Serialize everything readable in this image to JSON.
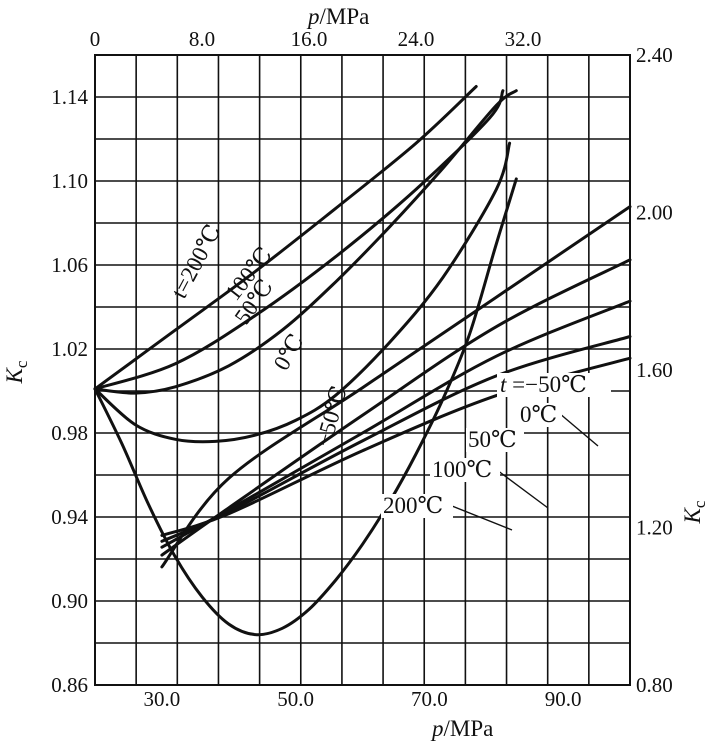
{
  "chart_data": {
    "type": "line",
    "title": "",
    "top_axis": {
      "label_symbol": "p",
      "label_unit": "/MPa",
      "range": [
        0,
        40
      ],
      "ticks": [
        0,
        8,
        16,
        24,
        32
      ],
      "tick_labels": [
        "0",
        "8.0",
        "16.0",
        "24.0",
        "32.0"
      ]
    },
    "bottom_axis": {
      "label_symbol": "p",
      "label_unit": "/MPa",
      "range": [
        20,
        100
      ],
      "ticks": [
        30,
        50,
        70,
        90
      ],
      "tick_labels": [
        "30.0",
        "50.0",
        "70.0",
        "90.0"
      ]
    },
    "left_axis": {
      "label_main": "K",
      "label_sub": "c",
      "range": [
        0.86,
        1.16
      ],
      "ticks": [
        0.86,
        0.9,
        0.94,
        0.98,
        1.02,
        1.06,
        1.1,
        1.14
      ],
      "tick_labels": [
        "0.86",
        "0.90",
        "0.94",
        "0.98",
        "1.02",
        "1.06",
        "1.10",
        "1.14"
      ]
    },
    "right_axis": {
      "label_main": "K",
      "label_sub": "c",
      "range": [
        0.8,
        2.4
      ],
      "ticks": [
        0.8,
        1.2,
        1.6,
        2.0,
        2.4
      ],
      "tick_labels": [
        "0.80",
        "1.20",
        "1.60",
        "2.00",
        "2.40"
      ]
    },
    "low_pressure_series": [
      {
        "name": "200",
        "label": "t=200℃",
        "x": [
          0,
          6,
          12,
          18,
          24,
          28.5
        ],
        "y": [
          1.001,
          1.029,
          1.057,
          1.087,
          1.118,
          1.145
        ]
      },
      {
        "name": "100",
        "label": "100℃",
        "x": [
          0,
          6,
          12,
          18,
          24,
          29.5,
          30.5
        ],
        "y": [
          1.001,
          1.013,
          1.036,
          1.064,
          1.096,
          1.13,
          1.143
        ]
      },
      {
        "name": "50",
        "label": "50℃",
        "x": [
          0,
          3,
          6,
          10,
          14,
          18,
          22,
          26,
          30,
          31.5
        ],
        "y": [
          1.001,
          0.999,
          1.002,
          1.012,
          1.029,
          1.052,
          1.078,
          1.106,
          1.136,
          1.143
        ]
      },
      {
        "name": "0",
        "label": "0℃",
        "x": [
          0,
          3,
          6,
          9,
          12,
          15,
          18,
          22,
          26,
          30,
          31
        ],
        "y": [
          1.001,
          0.984,
          0.977,
          0.976,
          0.979,
          0.986,
          0.998,
          1.023,
          1.054,
          1.096,
          1.118
        ]
      },
      {
        "name": "-50",
        "label": "−50℃",
        "x": [
          0,
          2,
          4,
          6,
          8,
          10,
          12,
          14,
          16,
          18,
          20,
          22,
          24,
          26,
          28,
          30,
          31.5
        ],
        "y": [
          1.001,
          0.975,
          0.946,
          0.921,
          0.902,
          0.889,
          0.884,
          0.887,
          0.896,
          0.91,
          0.927,
          0.947,
          0.97,
          0.996,
          1.027,
          1.07,
          1.101
        ]
      }
    ],
    "high_pressure_series": [
      {
        "name": "-50",
        "label": "t =−50℃",
        "x": [
          30,
          40,
          60,
          80,
          100
        ],
        "y": [
          1.1,
          1.325,
          1.555,
          1.785,
          2.015
        ]
      },
      {
        "name": "0",
        "label": "0℃",
        "x": [
          30,
          40,
          60,
          80,
          100
        ],
        "y": [
          1.13,
          1.25,
          1.485,
          1.71,
          1.88
        ]
      },
      {
        "name": "50",
        "label": "50℃",
        "x": [
          30,
          40,
          60,
          80,
          100
        ],
        "y": [
          1.15,
          1.245,
          1.44,
          1.635,
          1.775
        ]
      },
      {
        "name": "100",
        "label": "100℃",
        "x": [
          30,
          40,
          60,
          80,
          100
        ],
        "y": [
          1.165,
          1.24,
          1.42,
          1.585,
          1.685
        ]
      },
      {
        "name": "200",
        "label": "200℃",
        "x": [
          30,
          40,
          60,
          80,
          100
        ],
        "y": [
          1.18,
          1.235,
          1.395,
          1.535,
          1.63
        ]
      }
    ]
  }
}
